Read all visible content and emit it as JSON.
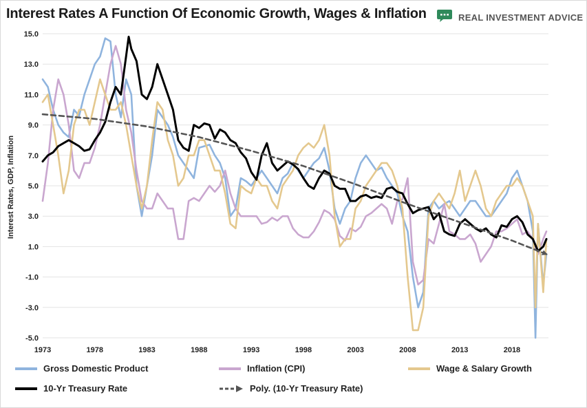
{
  "title": "Interest Rates A Function Of Economic Growth, Wages & Inflation",
  "brand": {
    "name": "REAL INVESTMENT ADVICE",
    "color": "#2f8a5b",
    "icon": "chat-bubble-logo-icon"
  },
  "chart_data": {
    "type": "line",
    "title": "Interest Rates A Function Of Economic Growth, Wages & Inflation",
    "xlabel": "",
    "ylabel": "Interest Rates, GDP, Inflation",
    "xlim": [
      1973,
      2021.5
    ],
    "ylim": [
      -5,
      15
    ],
    "xticks": [
      "1973",
      "1978",
      "1983",
      "1988",
      "1993",
      "1998",
      "2003",
      "2008",
      "2013",
      "2018"
    ],
    "yticks": [
      "15.0",
      "13.0",
      "11.0",
      "9.0",
      "7.0",
      "5.0",
      "3.0",
      "1.0",
      "-1.0",
      "-3.0",
      "-5.0"
    ],
    "grid": true,
    "legend_position": "bottom",
    "series": [
      {
        "name": "Gross Domestic Product",
        "color": "#8fb4de",
        "style": "solid",
        "x": [
          1973,
          1973.5,
          1974,
          1974.5,
          1975,
          1975.5,
          1976,
          1976.5,
          1977,
          1977.5,
          1978,
          1978.5,
          1979,
          1979.5,
          1980,
          1980.5,
          1981,
          1981.5,
          1982,
          1982.5,
          1983,
          1983.5,
          1984,
          1984.5,
          1985,
          1985.5,
          1986,
          1986.5,
          1987,
          1987.5,
          1988,
          1988.5,
          1989,
          1989.5,
          1990,
          1990.5,
          1991,
          1991.5,
          1992,
          1992.5,
          1993,
          1993.5,
          1994,
          1994.5,
          1995,
          1995.5,
          1996,
          1996.5,
          1997,
          1997.5,
          1998,
          1998.5,
          1999,
          1999.5,
          2000,
          2000.5,
          2001,
          2001.5,
          2002,
          2002.5,
          2003,
          2003.5,
          2004,
          2004.5,
          2005,
          2005.5,
          2006,
          2006.5,
          2007,
          2007.5,
          2008,
          2008.5,
          2009,
          2009.5,
          2010,
          2010.5,
          2011,
          2011.5,
          2012,
          2012.5,
          2013,
          2013.5,
          2014,
          2014.5,
          2015,
          2015.5,
          2016,
          2016.5,
          2017,
          2017.5,
          2018,
          2018.5,
          2019,
          2019.5,
          2020,
          2020.25,
          2020.5,
          2021,
          2021.3
        ],
        "y": [
          12,
          11.5,
          10,
          9,
          8.5,
          8.2,
          10,
          9.6,
          11,
          12,
          13,
          13.5,
          14.7,
          14.5,
          11,
          9.5,
          12,
          11,
          5,
          3,
          5,
          7,
          10,
          9.5,
          9,
          8.2,
          7,
          6.5,
          6,
          5.5,
          7.5,
          7.6,
          7.7,
          7,
          6.5,
          5.5,
          3,
          3.5,
          5.5,
          5.3,
          5,
          5.5,
          6,
          5.5,
          5,
          4.5,
          5.5,
          5.8,
          6.5,
          6,
          5.5,
          6,
          6.5,
          6.8,
          7.5,
          6,
          3.5,
          2.5,
          3.5,
          4,
          5.5,
          6.5,
          7,
          6.5,
          6,
          6.2,
          5.5,
          5,
          4.5,
          3,
          2,
          -1,
          -3,
          -2,
          3.5,
          4,
          3.5,
          3.8,
          4,
          3.5,
          3,
          3.5,
          4,
          4,
          3.5,
          3,
          3,
          3.5,
          4,
          4.5,
          5.5,
          6,
          5,
          4,
          2,
          -5,
          2.5,
          -1.5,
          0.5
        ]
      },
      {
        "name": "Inflation (CPI)",
        "color": "#c9a6cf",
        "style": "solid",
        "x": [
          1973,
          1973.5,
          1974,
          1974.5,
          1975,
          1975.5,
          1976,
          1976.5,
          1977,
          1977.5,
          1978,
          1978.5,
          1979,
          1979.5,
          1980,
          1980.5,
          1981,
          1981.5,
          1982,
          1982.5,
          1983,
          1983.5,
          1984,
          1984.5,
          1985,
          1985.5,
          1986,
          1986.5,
          1987,
          1987.5,
          1988,
          1988.5,
          1989,
          1989.5,
          1990,
          1990.5,
          1991,
          1991.5,
          1992,
          1992.5,
          1993,
          1993.5,
          1994,
          1994.5,
          1995,
          1995.5,
          1996,
          1996.5,
          1997,
          1997.5,
          1998,
          1998.5,
          1999,
          1999.5,
          2000,
          2000.5,
          2001,
          2001.5,
          2002,
          2002.5,
          2003,
          2003.5,
          2004,
          2004.5,
          2005,
          2005.5,
          2006,
          2006.5,
          2007,
          2007.5,
          2008,
          2008.5,
          2009,
          2009.5,
          2010,
          2010.5,
          2011,
          2011.5,
          2012,
          2012.5,
          2013,
          2013.5,
          2014,
          2014.5,
          2015,
          2015.5,
          2016,
          2016.5,
          2017,
          2017.5,
          2018,
          2018.5,
          2019,
          2019.5,
          2020,
          2020.5,
          2021,
          2021.3
        ],
        "y": [
          4,
          6.5,
          10,
          12,
          11,
          9,
          6,
          5.5,
          6.5,
          6.5,
          7.5,
          9,
          11,
          13,
          14.2,
          13,
          10,
          8.5,
          6,
          4,
          3.5,
          3.5,
          4.5,
          4,
          3.5,
          3.5,
          1.5,
          1.5,
          4,
          4.2,
          4,
          4.5,
          5,
          4.6,
          5,
          6,
          4.5,
          3.5,
          3,
          3,
          3,
          3,
          2.5,
          2.6,
          2.9,
          2.7,
          3,
          3,
          2.2,
          1.8,
          1.6,
          1.6,
          2,
          2.6,
          3.4,
          3.2,
          2.8,
          1.7,
          1.4,
          2.2,
          2,
          2.3,
          3,
          3.2,
          3.5,
          3.8,
          3.5,
          2.5,
          4,
          4.1,
          5.5,
          0,
          -1.5,
          -1.2,
          1.5,
          1.2,
          2.5,
          3.8,
          2,
          1.8,
          1.5,
          1.5,
          1.8,
          1.2,
          0,
          0.5,
          1,
          2,
          2,
          2.2,
          2.5,
          2.8,
          1.8,
          2,
          1.5,
          0.5,
          1.5,
          2
        ]
      },
      {
        "name": "Wage & Salary Growth",
        "color": "#e4c88e",
        "style": "solid",
        "x": [
          1973,
          1973.5,
          1974,
          1974.5,
          1975,
          1975.5,
          1976,
          1976.5,
          1977,
          1977.5,
          1978,
          1978.5,
          1979,
          1979.5,
          1980,
          1980.5,
          1981,
          1981.5,
          1982,
          1982.5,
          1983,
          1983.5,
          1984,
          1984.5,
          1985,
          1985.5,
          1986,
          1986.5,
          1987,
          1987.5,
          1988,
          1988.5,
          1989,
          1989.5,
          1990,
          1990.5,
          1991,
          1991.5,
          1992,
          1992.5,
          1993,
          1993.5,
          1994,
          1994.5,
          1995,
          1995.5,
          1996,
          1996.5,
          1997,
          1997.5,
          1998,
          1998.5,
          1999,
          1999.5,
          2000,
          2000.5,
          2001,
          2001.5,
          2002,
          2002.5,
          2003,
          2003.5,
          2004,
          2004.5,
          2005,
          2005.5,
          2006,
          2006.5,
          2007,
          2007.5,
          2008,
          2008.5,
          2009,
          2009.5,
          2010,
          2010.5,
          2011,
          2011.5,
          2012,
          2012.5,
          2013,
          2013.5,
          2014,
          2014.5,
          2015,
          2015.5,
          2016,
          2016.5,
          2017,
          2017.5,
          2018,
          2018.5,
          2019,
          2019.5,
          2020,
          2020.25,
          2020.5,
          2021,
          2021.3
        ],
        "y": [
          10.5,
          11,
          9,
          7,
          4.5,
          6,
          9,
          10,
          10,
          9,
          10.5,
          12,
          11,
          10,
          10,
          10.5,
          9,
          7,
          5,
          3.5,
          5,
          8,
          10.5,
          10,
          8,
          7,
          5,
          5.5,
          7,
          7,
          8,
          8,
          7,
          6,
          6,
          4.5,
          2.5,
          2.2,
          5,
          4.7,
          4.5,
          5.5,
          5,
          5,
          4,
          3.5,
          5,
          5.5,
          6,
          7,
          7.5,
          7.8,
          7.5,
          8,
          9,
          7,
          3,
          1,
          1.5,
          1.5,
          3.5,
          4,
          5,
          5.5,
          6,
          6.5,
          6.5,
          6,
          5,
          3.5,
          -1,
          -4.5,
          -4.5,
          -3,
          3,
          4,
          4.5,
          4,
          3.5,
          4.5,
          6,
          4,
          5,
          6,
          5,
          3.5,
          3,
          4,
          4.5,
          5,
          5,
          5.5,
          5,
          4,
          3,
          -3,
          2.5,
          -2,
          1.5
        ]
      },
      {
        "name": "10-Yr Treasury Rate",
        "color": "#000000",
        "style": "solid",
        "x": [
          1973,
          1973.5,
          1974,
          1974.5,
          1975,
          1975.5,
          1976,
          1976.5,
          1977,
          1977.5,
          1978,
          1978.5,
          1979,
          1979.5,
          1980,
          1980.5,
          1981,
          1981.25,
          1981.5,
          1982,
          1982.5,
          1983,
          1983.5,
          1984,
          1984.5,
          1985,
          1985.5,
          1986,
          1986.5,
          1987,
          1987.5,
          1988,
          1988.5,
          1989,
          1989.5,
          1990,
          1990.5,
          1991,
          1991.5,
          1992,
          1992.5,
          1993,
          1993.5,
          1994,
          1994.5,
          1995,
          1995.5,
          1996,
          1996.5,
          1997,
          1997.5,
          1998,
          1998.5,
          1999,
          1999.5,
          2000,
          2000.5,
          2001,
          2001.5,
          2002,
          2002.5,
          2003,
          2003.5,
          2004,
          2004.5,
          2005,
          2005.5,
          2006,
          2006.5,
          2007,
          2007.5,
          2008,
          2008.5,
          2009,
          2009.5,
          2010,
          2010.5,
          2011,
          2011.5,
          2012,
          2012.5,
          2013,
          2013.5,
          2014,
          2014.5,
          2015,
          2015.5,
          2016,
          2016.5,
          2017,
          2017.5,
          2018,
          2018.5,
          2019,
          2019.5,
          2020,
          2020.5,
          2021,
          2021.3
        ],
        "y": [
          6.6,
          7,
          7.2,
          7.6,
          7.8,
          8,
          7.8,
          7.6,
          7.3,
          7.4,
          8,
          8.5,
          9.2,
          10.5,
          11.5,
          11,
          13.5,
          14.8,
          14,
          13.2,
          11,
          10.7,
          11.5,
          13,
          12,
          11,
          10,
          8,
          7.5,
          7.3,
          9,
          8.8,
          9.1,
          9,
          8.1,
          8.7,
          8.5,
          8,
          7.8,
          7.2,
          6.8,
          5.9,
          5.4,
          7,
          7.8,
          6.5,
          6,
          6.3,
          6.6,
          6.4,
          6.1,
          5.5,
          5,
          4.8,
          5.5,
          6,
          5.8,
          5,
          4.8,
          4.8,
          4,
          4,
          4.3,
          4.4,
          4.2,
          4.3,
          4.2,
          4.8,
          4.9,
          4.6,
          4.5,
          3.8,
          3.2,
          3.4,
          3.5,
          3.6,
          2.8,
          3.2,
          2,
          1.8,
          1.7,
          2.5,
          2.8,
          2.5,
          2.2,
          2,
          2.2,
          1.8,
          1.6,
          2.4,
          2.3,
          2.8,
          3,
          2.6,
          1.8,
          1.5,
          0.7,
          1,
          1.5
        ]
      },
      {
        "name": "Poly. (10-Yr Treasury Rate)",
        "color": "#555555",
        "style": "dashed",
        "x": [
          1973,
          1978,
          1983,
          1988,
          1993,
          1998,
          2003,
          2008,
          2013,
          2018,
          2021.3
        ],
        "y": [
          9.7,
          9.4,
          8.9,
          8.2,
          7.3,
          6.3,
          5.1,
          3.8,
          2.6,
          1.4,
          0.5
        ]
      }
    ]
  }
}
